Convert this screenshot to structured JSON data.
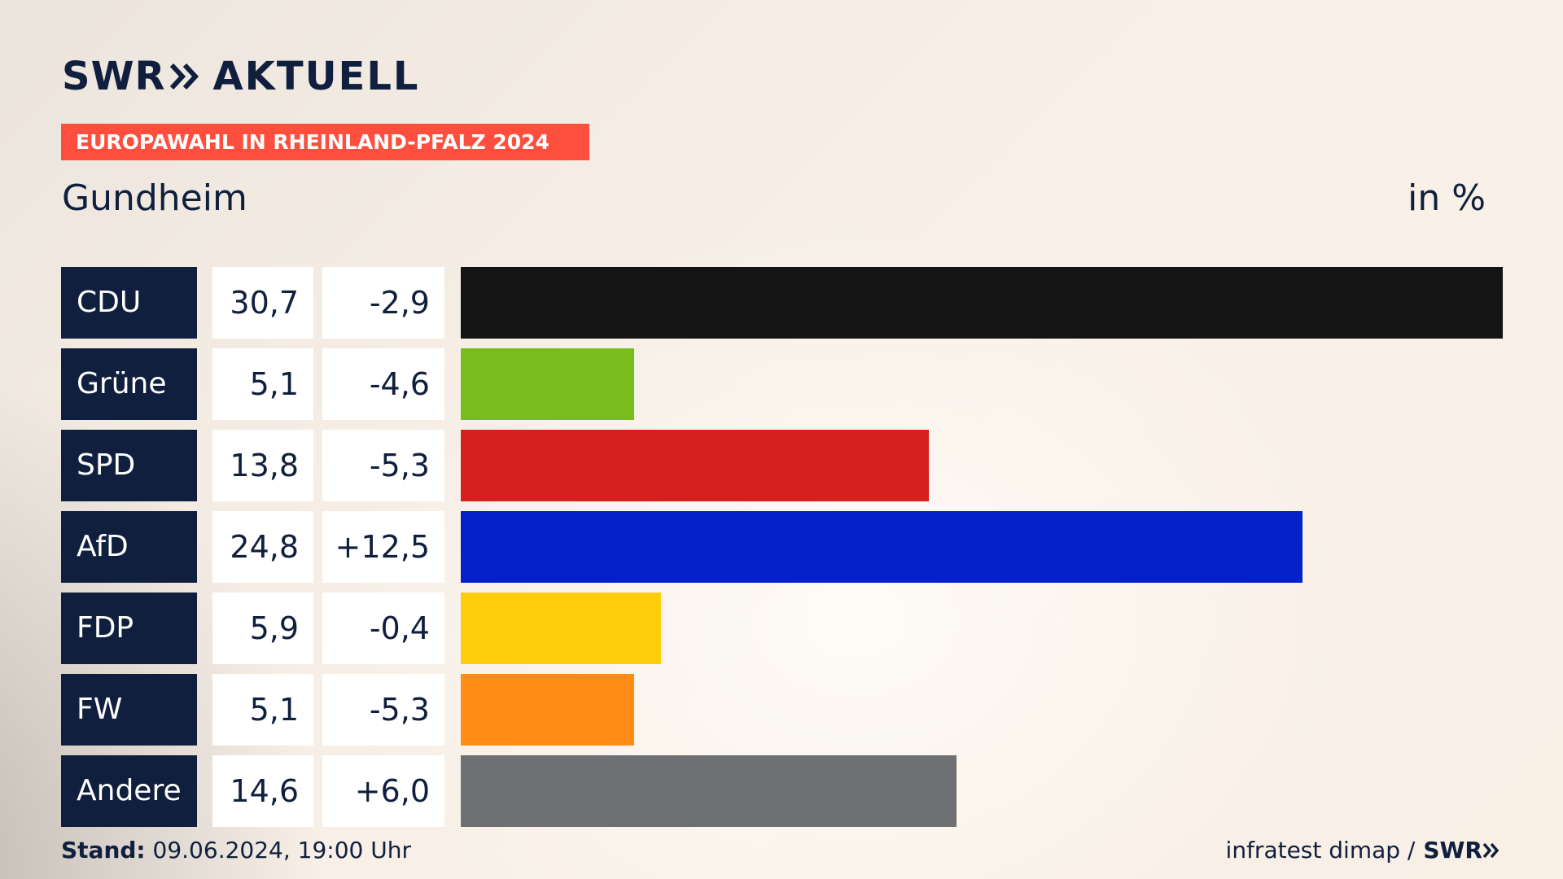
{
  "header": {
    "brand_swr": "SWR",
    "brand_aktuell": "AKTUELL",
    "banner": "EUROPAWAHL IN RHEINLAND-PFALZ 2024",
    "place": "Gundheim",
    "unit": "in %"
  },
  "chart_data": {
    "type": "bar",
    "title": "Gundheim",
    "ylabel": "in %",
    "categories": [
      "CDU",
      "Grüne",
      "SPD",
      "AfD",
      "FDP",
      "FW",
      "Andere"
    ],
    "values": [
      30.7,
      5.1,
      13.8,
      24.8,
      5.9,
      5.1,
      14.6
    ],
    "value_labels": [
      "30,7",
      "5,1",
      "13,8",
      "24,8",
      "5,9",
      "5,1",
      "14,6"
    ],
    "diff_labels": [
      "-2,9",
      "-4,6",
      "-5,3",
      "+12,5",
      "-0,4",
      "-5,3",
      "+6,0"
    ],
    "diffs": [
      -2.9,
      -4.6,
      -5.3,
      12.5,
      -0.4,
      -5.3,
      6.0
    ],
    "colors": [
      "#141414",
      "#79bd1d",
      "#d61f1f",
      "#0320c9",
      "#ffcd0b",
      "#ff8c17",
      "#6f7073"
    ],
    "ylim": [
      0,
      30.7
    ]
  },
  "footer": {
    "stand_label": "Stand:",
    "stand_value": "09.06.2024, 19:00 Uhr",
    "source": "infratest dimap /",
    "source_brand": "SWR"
  }
}
